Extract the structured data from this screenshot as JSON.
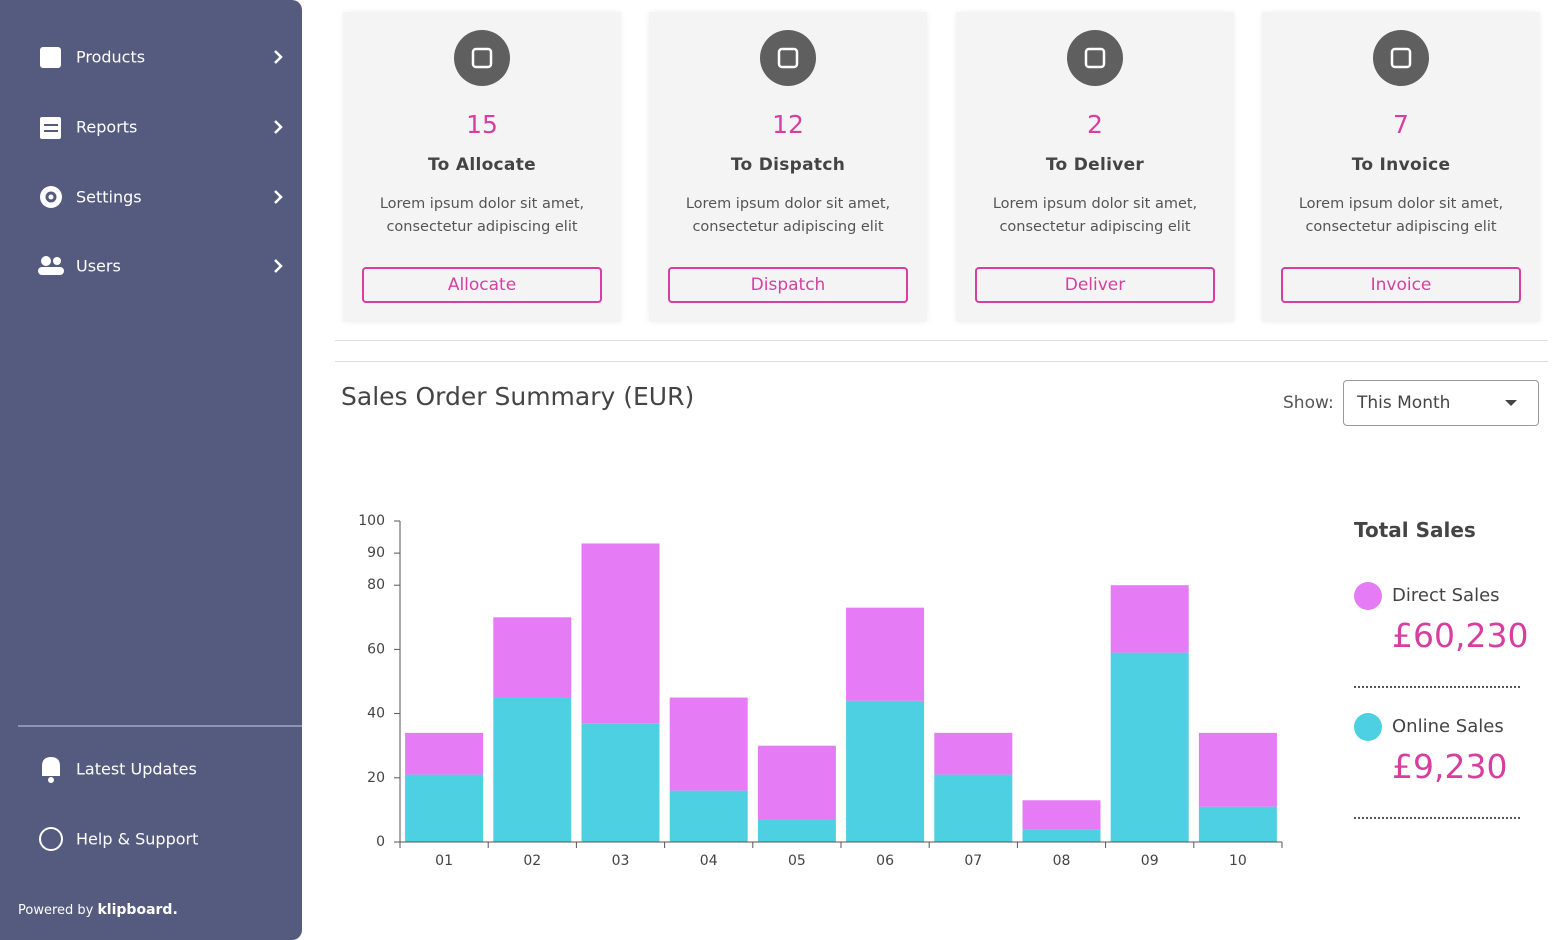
{
  "sidebar": {
    "nav": [
      "Products",
      "Reports",
      "Settings",
      "Users"
    ],
    "footer_links": [
      "Latest Updates",
      "Help & Support"
    ],
    "powered_by": "Powered by",
    "brand": "klipboard."
  },
  "cards": [
    {
      "count": 15,
      "title": "To Allocate",
      "description": [
        "Lorem ipsum dolor sit amet,",
        "consectetur adipiscing elit"
      ],
      "button": "Allocate"
    },
    {
      "count": 12,
      "title": "To Dispatch",
      "description": [
        "Lorem ipsum dolor sit amet,",
        "consectetur adipiscing elit"
      ],
      "button": "Dispatch"
    },
    {
      "count": 2,
      "title": "To Deliver",
      "description": [
        "Lorem ipsum dolor sit amet,",
        "consectetur adipiscing elit"
      ],
      "button": "Deliver"
    },
    {
      "count": 7,
      "title": "To Invoice",
      "description": [
        "Lorem ipsum dolor sit amet,",
        "consectetur adipiscing elit"
      ],
      "button": "Invoice"
    }
  ],
  "summary": {
    "title": "Sales Order Summary (EUR)",
    "show_label": "Show:",
    "show_value": "This Month"
  },
  "chart_data": {
    "type": "stacked-bar",
    "categories": [
      "01",
      "02",
      "03",
      "04",
      "05",
      "06",
      "07",
      "08",
      "09",
      "10"
    ],
    "series": [
      {
        "name": "Online Sales",
        "color": "#4dd0e1",
        "values": [
          21,
          45,
          37,
          16,
          7,
          44,
          21,
          4,
          59,
          11
        ]
      },
      {
        "name": "Direct Sales",
        "color": "#e57bf5",
        "values": [
          13,
          25,
          56,
          29,
          23,
          29,
          13,
          9,
          21,
          23
        ]
      }
    ],
    "ylim": [
      0,
      100
    ],
    "yticks": [
      0,
      20,
      40,
      60,
      80,
      90,
      100
    ]
  },
  "totals": {
    "title": "Total Sales",
    "amounts": [
      "£9,230",
      "£60,230"
    ]
  }
}
